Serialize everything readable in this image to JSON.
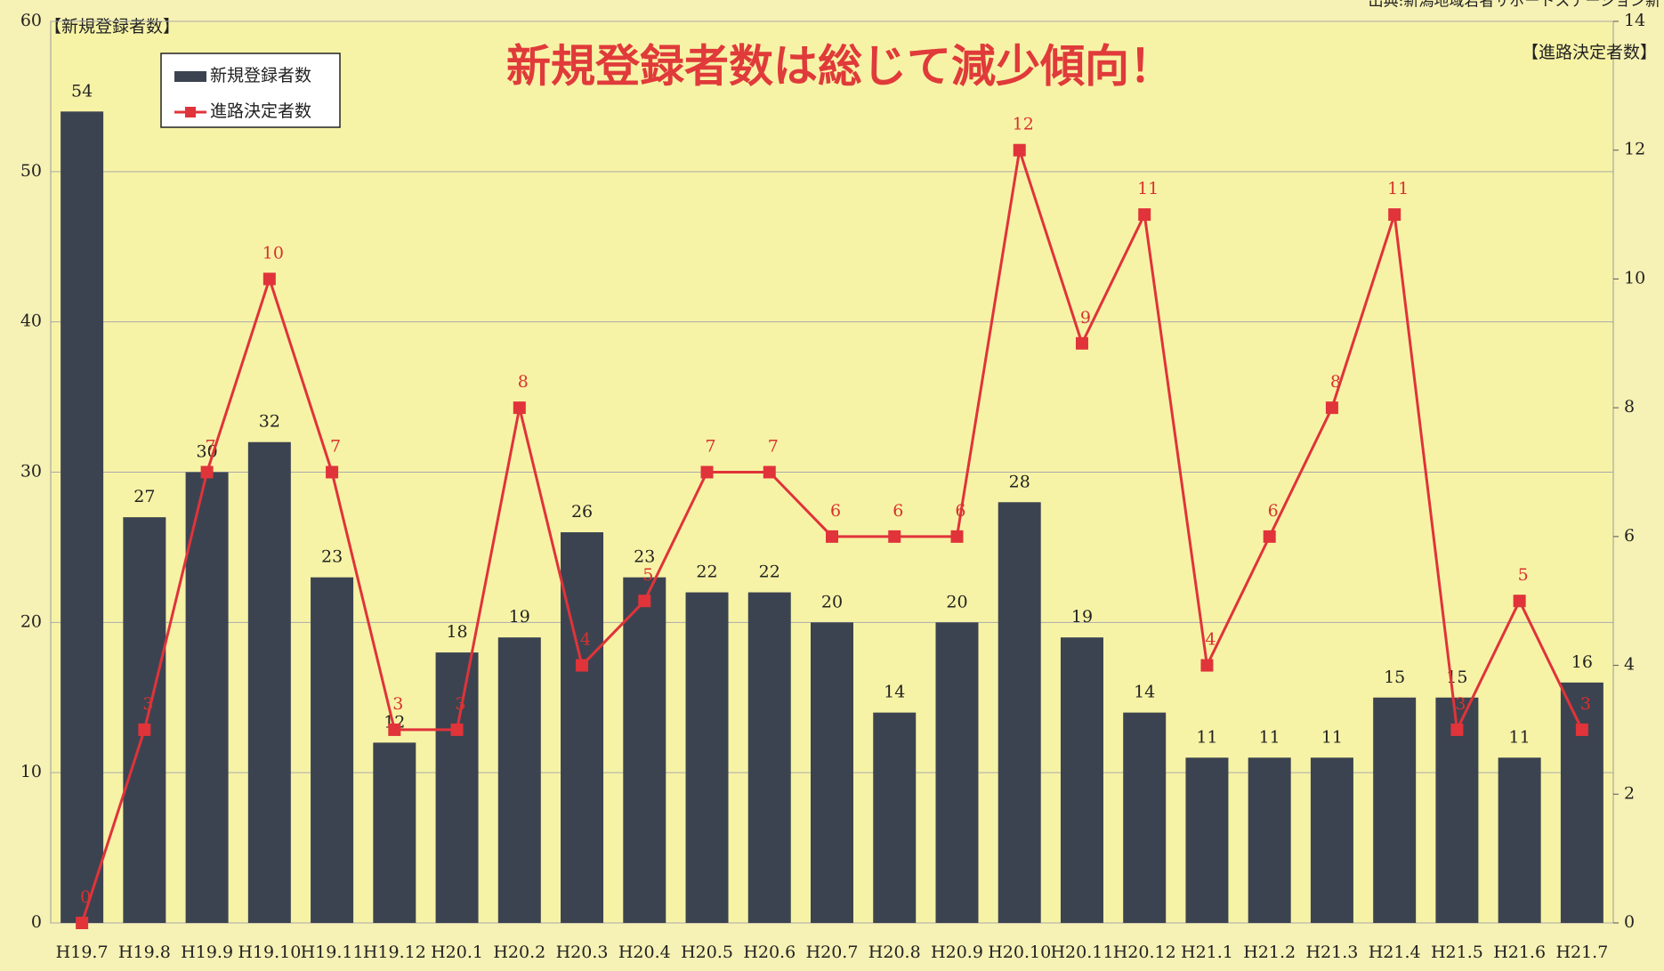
{
  "chart_data": {
    "type": "bar_line",
    "title": "新規登録者数は総じて減少傾向！",
    "source": "出典:新潟地域若者サポートステーション新",
    "y_label": "【新規登録者数】",
    "y2_label": "【進路決定者数】",
    "categories": [
      "H19.7",
      "H19.8",
      "H19.9",
      "H19.10",
      "H19.11",
      "H19.12",
      "H20.1",
      "H20.2",
      "H20.3",
      "H20.4",
      "H20.5",
      "H20.6",
      "H20.7",
      "H20.8",
      "H20.9",
      "H20.10",
      "H20.11",
      "H20.12",
      "H21.1",
      "H21.2",
      "H21.3",
      "H21.4",
      "H21.5",
      "H21.6",
      "H21.7"
    ],
    "series": [
      {
        "name": "新規登録者数",
        "type": "bar",
        "color": "#3c4350",
        "values": [
          54,
          27,
          30,
          32,
          23,
          12,
          18,
          19,
          26,
          23,
          22,
          22,
          20,
          14,
          20,
          28,
          19,
          14,
          11,
          11,
          11,
          15,
          15,
          11,
          16
        ]
      },
      {
        "name": "進路決定者数",
        "type": "line",
        "axis": "y2",
        "color": "#e0333a",
        "values": [
          0,
          3,
          7,
          10,
          7,
          3,
          3,
          8,
          4,
          5,
          7,
          7,
          6,
          6,
          6,
          12,
          9,
          11,
          4,
          6,
          8,
          11,
          3,
          5,
          3
        ]
      }
    ],
    "ylim": [
      0,
      60
    ],
    "yticks": [
      0,
      10,
      20,
      30,
      40,
      50,
      60
    ],
    "y2lim": [
      0,
      14
    ],
    "y2ticks": [
      0,
      2,
      4,
      6,
      8,
      10,
      12,
      14
    ],
    "grid": true,
    "legend": "upper left"
  }
}
